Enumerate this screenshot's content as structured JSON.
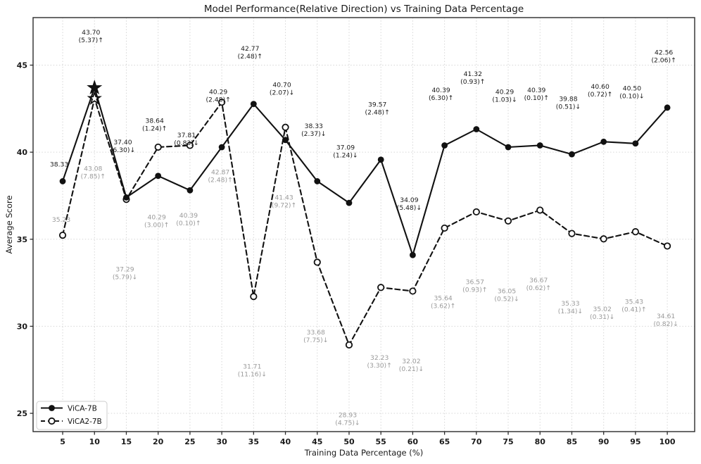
{
  "chart_data": {
    "type": "line",
    "title": "Model Performance(Relative Direction) vs Training Data Percentage",
    "xlabel": "Training Data Percentage (%)",
    "ylabel": "Average Score",
    "x": [
      5,
      10,
      15,
      20,
      25,
      30,
      35,
      40,
      45,
      50,
      55,
      60,
      65,
      70,
      75,
      80,
      85,
      90,
      95,
      100
    ],
    "x_ticks": [
      5,
      10,
      15,
      20,
      25,
      30,
      35,
      40,
      45,
      50,
      55,
      60,
      65,
      70,
      75,
      80,
      85,
      90,
      95,
      100
    ],
    "y_ticks": [
      25,
      30,
      35,
      40,
      45
    ],
    "xlim": [
      0.35,
      104.3
    ],
    "ylim": [
      23.95,
      47.73
    ],
    "grid": true,
    "legend_position": "lower left",
    "series": [
      {
        "name": "ViCA-7B",
        "line_style": "solid",
        "marker": "filled-circle",
        "star_index": 1,
        "color": "#111111",
        "label_color": "#1a1a1a",
        "values": [
          38.33,
          43.7,
          37.4,
          38.64,
          37.81,
          40.29,
          42.77,
          40.7,
          38.33,
          37.09,
          39.57,
          34.09,
          40.39,
          41.32,
          40.29,
          40.39,
          39.88,
          40.6,
          40.5,
          42.56
        ],
        "deltas": [
          null,
          "(5.37)↑",
          "(6.30)↓",
          "(1.24)↑",
          "(0.83)↓",
          "(2.48)↑",
          "(2.48)↑",
          "(2.07)↓",
          "(2.37)↓",
          "(1.24)↓",
          "(2.48)↑",
          "(5.48)↓",
          "(6.30)↑",
          "(0.93)↑",
          "(1.03)↓",
          "(0.10)↑",
          "(0.51)↓",
          "(0.72)↑",
          "(0.10)↓",
          "(2.06)↑"
        ]
      },
      {
        "name": "ViCA2-7B",
        "line_style": "dashed",
        "marker": "open-circle",
        "star_index": 1,
        "color": "#111111",
        "label_color": "#9a9a9a",
        "values": [
          35.23,
          43.08,
          37.29,
          40.29,
          40.39,
          42.87,
          31.71,
          41.43,
          33.68,
          28.93,
          32.23,
          32.02,
          35.64,
          36.57,
          36.05,
          36.67,
          35.33,
          35.02,
          35.43,
          34.61
        ],
        "deltas": [
          null,
          "(7.85)↑",
          "(5.79)↓",
          "(3.00)↑",
          "(0.10)↑",
          "(2.48)↑",
          "(11.16)↓",
          "(9.72)↑",
          "(7.75)↓",
          "(4.75)↓",
          "(3.30)↑",
          "(0.21)↓",
          "(3.62)↑",
          "(0.93)↑",
          "(0.52)↓",
          "(0.62)↑",
          "(1.34)↓",
          "(0.31)↓",
          "(0.41)↑",
          "(0.82)↓"
        ]
      }
    ],
    "colors": {
      "axis": "#2b2b2b",
      "grid": "#d6d6d6",
      "background": "#ffffff",
      "legend_border": "#cccccc"
    }
  }
}
